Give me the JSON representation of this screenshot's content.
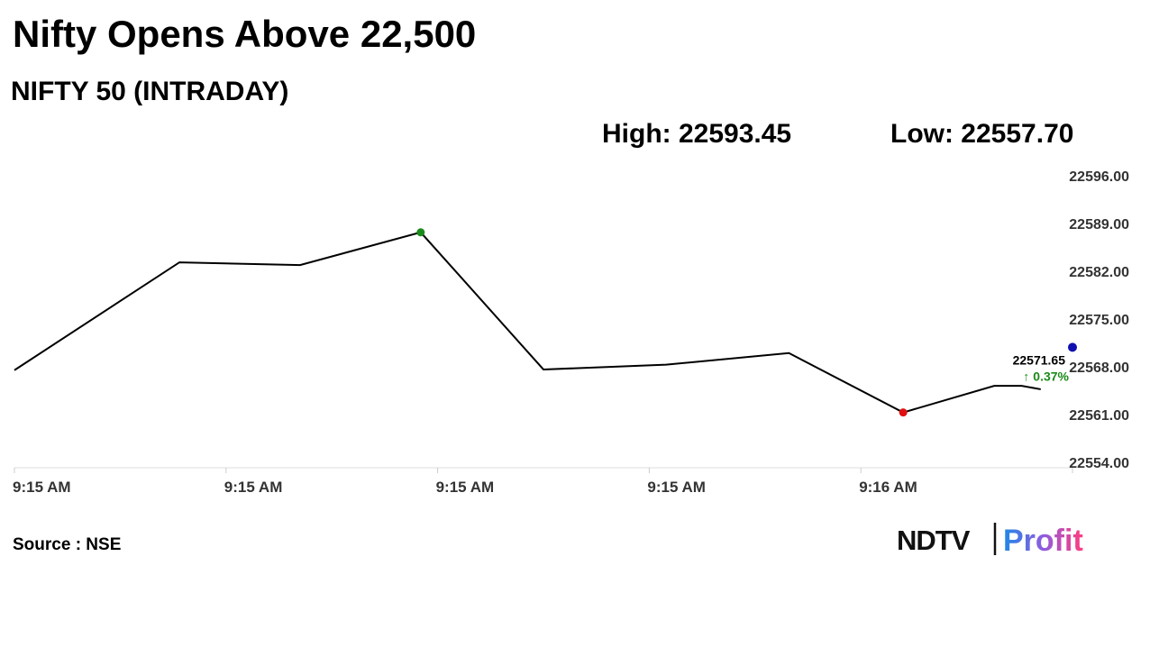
{
  "chart_data": {
    "type": "line",
    "title": "Nifty Opens Above 22,500",
    "subtitle": "NIFTY 50 (INTRADAY)",
    "high_label": "High: 22593.45",
    "low_label": "Low: 22557.70",
    "source": "Source : NSE",
    "logo": {
      "left": "NDTV",
      "right": "Profit"
    },
    "series": [
      {
        "color": "#000000",
        "x": [
          0,
          0.78,
          1.35,
          1.92,
          2.5,
          3.08,
          3.66,
          4.2,
          4.63,
          4.76,
          4.85
        ],
        "values": [
          22568.3,
          22584.1,
          22583.7,
          22588.5,
          22568.4,
          22569.1,
          22570.8,
          22562.1,
          22566.0,
          22566.0,
          22565.5
        ]
      }
    ],
    "high_marker": {
      "index": 3,
      "color": "#1a8a1a"
    },
    "low_marker": {
      "index": 7,
      "color": "#e01010"
    },
    "last_point": {
      "x": 5,
      "value": 22571.65,
      "change": "↑ 0.37%",
      "color": "#1010b0",
      "change_color": "#1a8a1a"
    },
    "xlim": [
      0,
      5
    ],
    "xticks": [
      {
        "value": 0,
        "label": "9:15 AM"
      },
      {
        "value": 1,
        "label": "9:15 AM"
      },
      {
        "value": 2,
        "label": "9:15 AM"
      },
      {
        "value": 3,
        "label": "9:15 AM"
      },
      {
        "value": 4,
        "label": "9:16 AM"
      },
      {
        "value": 5,
        "label": null
      }
    ],
    "ylim": [
      22554,
      22596
    ],
    "yticks": [
      {
        "value": 22596,
        "label": "22596.00"
      },
      {
        "value": 22589,
        "label": "22589.00"
      },
      {
        "value": 22582,
        "label": "22582.00"
      },
      {
        "value": 22575,
        "label": "22575.00"
      },
      {
        "value": 22568,
        "label": "22568.00"
      },
      {
        "value": 22561,
        "label": "22561.00"
      },
      {
        "value": 22554,
        "label": "22554.00"
      }
    ],
    "grid": false
  }
}
